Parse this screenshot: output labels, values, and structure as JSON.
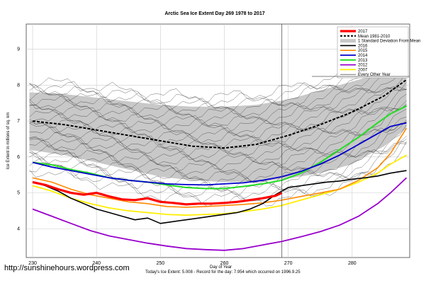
{
  "chart_data": {
    "type": "line",
    "title": "Arctic Sea Ice Extent Day 269 1978 to 2017",
    "xlabel": "Day of Year",
    "ylabel": "Ice Extent in millions of sq. km",
    "xlim": [
      229,
      289
    ],
    "ylim": [
      3.2,
      9.7
    ],
    "xticks": [
      230,
      240,
      250,
      260,
      270,
      280
    ],
    "yticks": [
      4,
      5,
      6,
      7,
      8,
      9
    ],
    "grid": true,
    "legend_position": "top-right",
    "marker_day": 269,
    "band": {
      "name": "1 Standard Deviation From Mean",
      "x": [
        229.5,
        235,
        240,
        245,
        250,
        255,
        260,
        265,
        270,
        275,
        280,
        285,
        288.5
      ],
      "upper": [
        7.8,
        7.75,
        7.65,
        7.55,
        7.45,
        7.4,
        7.4,
        7.45,
        7.6,
        7.85,
        8.1,
        8.35,
        8.55
      ],
      "lower": [
        6.2,
        6.05,
        5.85,
        5.65,
        5.45,
        5.35,
        5.3,
        5.3,
        5.4,
        5.55,
        5.8,
        6.3,
        6.8
      ]
    },
    "series": [
      {
        "name": "2017",
        "color": "#ff0000",
        "width": 3.2,
        "dash": "",
        "x": [
          230,
          232,
          234,
          236,
          238,
          240,
          242,
          244,
          246,
          248,
          250,
          252,
          254,
          256,
          258,
          260,
          262,
          264,
          266,
          268,
          269
        ],
        "y": [
          5.3,
          5.22,
          5.1,
          5.0,
          4.95,
          5.0,
          4.9,
          4.82,
          4.8,
          4.85,
          4.75,
          4.72,
          4.68,
          4.7,
          4.7,
          4.72,
          4.75,
          4.8,
          4.85,
          4.92,
          5.0
        ]
      },
      {
        "name": "Mean 1981-2010",
        "color": "#000000",
        "width": 2,
        "dash": "4 2",
        "x": [
          230,
          235,
          240,
          245,
          250,
          255,
          260,
          265,
          270,
          275,
          280,
          285,
          288.5
        ],
        "y": [
          7.0,
          6.9,
          6.75,
          6.6,
          6.45,
          6.3,
          6.25,
          6.35,
          6.6,
          6.9,
          7.25,
          7.7,
          8.15
        ]
      },
      {
        "name": "2016",
        "color": "#000000",
        "width": 1.6,
        "dash": "",
        "x": [
          230,
          232,
          234,
          236,
          238,
          240,
          242,
          244,
          246,
          248,
          250,
          252,
          254,
          256,
          258,
          260,
          262,
          264,
          266,
          268,
          270,
          272,
          274,
          276,
          278,
          280,
          282,
          284,
          286,
          288.5
        ],
        "y": [
          5.3,
          5.2,
          5.05,
          4.85,
          4.7,
          4.55,
          4.45,
          4.35,
          4.25,
          4.3,
          4.15,
          4.2,
          4.25,
          4.3,
          4.35,
          4.4,
          4.45,
          4.55,
          4.7,
          4.95,
          5.15,
          5.2,
          5.25,
          5.3,
          5.33,
          5.38,
          5.42,
          5.47,
          5.55,
          5.62
        ]
      },
      {
        "name": "2015",
        "color": "#ff8800",
        "width": 1.6,
        "dash": "",
        "x": [
          230,
          233,
          236,
          239,
          242,
          245,
          248,
          251,
          254,
          257,
          260,
          263,
          266,
          269,
          272,
          275,
          278,
          281,
          284,
          286,
          288.5
        ],
        "y": [
          5.42,
          5.3,
          5.1,
          4.95,
          4.85,
          4.75,
          4.7,
          4.62,
          4.6,
          4.62,
          4.65,
          4.68,
          4.72,
          4.8,
          4.9,
          5.0,
          5.1,
          5.35,
          5.7,
          6.1,
          6.8
        ]
      },
      {
        "name": "2014",
        "color": "#0000cc",
        "width": 1.8,
        "dash": "",
        "x": [
          230,
          233,
          236,
          239,
          242,
          245,
          248,
          251,
          254,
          257,
          260,
          263,
          266,
          269,
          272,
          275,
          278,
          281,
          284,
          286,
          288.5
        ],
        "y": [
          5.85,
          5.72,
          5.62,
          5.52,
          5.42,
          5.35,
          5.3,
          5.25,
          5.23,
          5.22,
          5.25,
          5.28,
          5.35,
          5.45,
          5.6,
          5.8,
          6.05,
          6.35,
          6.65,
          6.85,
          6.95
        ]
      },
      {
        "name": "2013",
        "color": "#22dd22",
        "width": 2,
        "dash": "",
        "x": [
          230,
          233,
          236,
          239,
          242,
          245,
          248,
          251,
          254,
          257,
          260,
          263,
          266,
          269,
          272,
          275,
          278,
          281,
          284,
          286,
          288.5
        ],
        "y": [
          5.85,
          5.78,
          5.65,
          5.55,
          5.42,
          5.35,
          5.3,
          5.22,
          5.15,
          5.12,
          5.12,
          5.18,
          5.25,
          5.35,
          5.55,
          5.85,
          6.2,
          6.55,
          6.95,
          7.2,
          7.42
        ]
      },
      {
        "name": "2012",
        "color": "#9900cc",
        "width": 1.8,
        "dash": "",
        "x": [
          230,
          233,
          236,
          239,
          242,
          245,
          248,
          251,
          254,
          257,
          260,
          263,
          266,
          269,
          272,
          275,
          278,
          281,
          284,
          286,
          288.5
        ],
        "y": [
          4.55,
          4.35,
          4.15,
          3.95,
          3.8,
          3.7,
          3.6,
          3.52,
          3.45,
          3.42,
          3.4,
          3.45,
          3.55,
          3.65,
          3.78,
          3.92,
          4.1,
          4.35,
          4.7,
          5.0,
          5.42
        ]
      },
      {
        "name": "2007",
        "color": "#ffee00",
        "width": 1.8,
        "dash": "",
        "x": [
          230,
          233,
          236,
          239,
          242,
          245,
          248,
          251,
          254,
          257,
          260,
          263,
          266,
          269,
          272,
          275,
          278,
          281,
          284,
          286,
          288.5
        ],
        "y": [
          5.2,
          5.05,
          4.85,
          4.7,
          4.58,
          4.5,
          4.45,
          4.4,
          4.38,
          4.4,
          4.42,
          4.48,
          4.55,
          4.65,
          4.8,
          4.95,
          5.1,
          5.3,
          5.55,
          5.8,
          6.05
        ]
      }
    ],
    "legend_extra": [
      "Every Other Year"
    ]
  },
  "watermark": "http://sunshinehours.wordpress.com",
  "footer": "Today's Ice Extent: 5.008  - Record for the day: 7.954 which occurred on 1996.9.25"
}
